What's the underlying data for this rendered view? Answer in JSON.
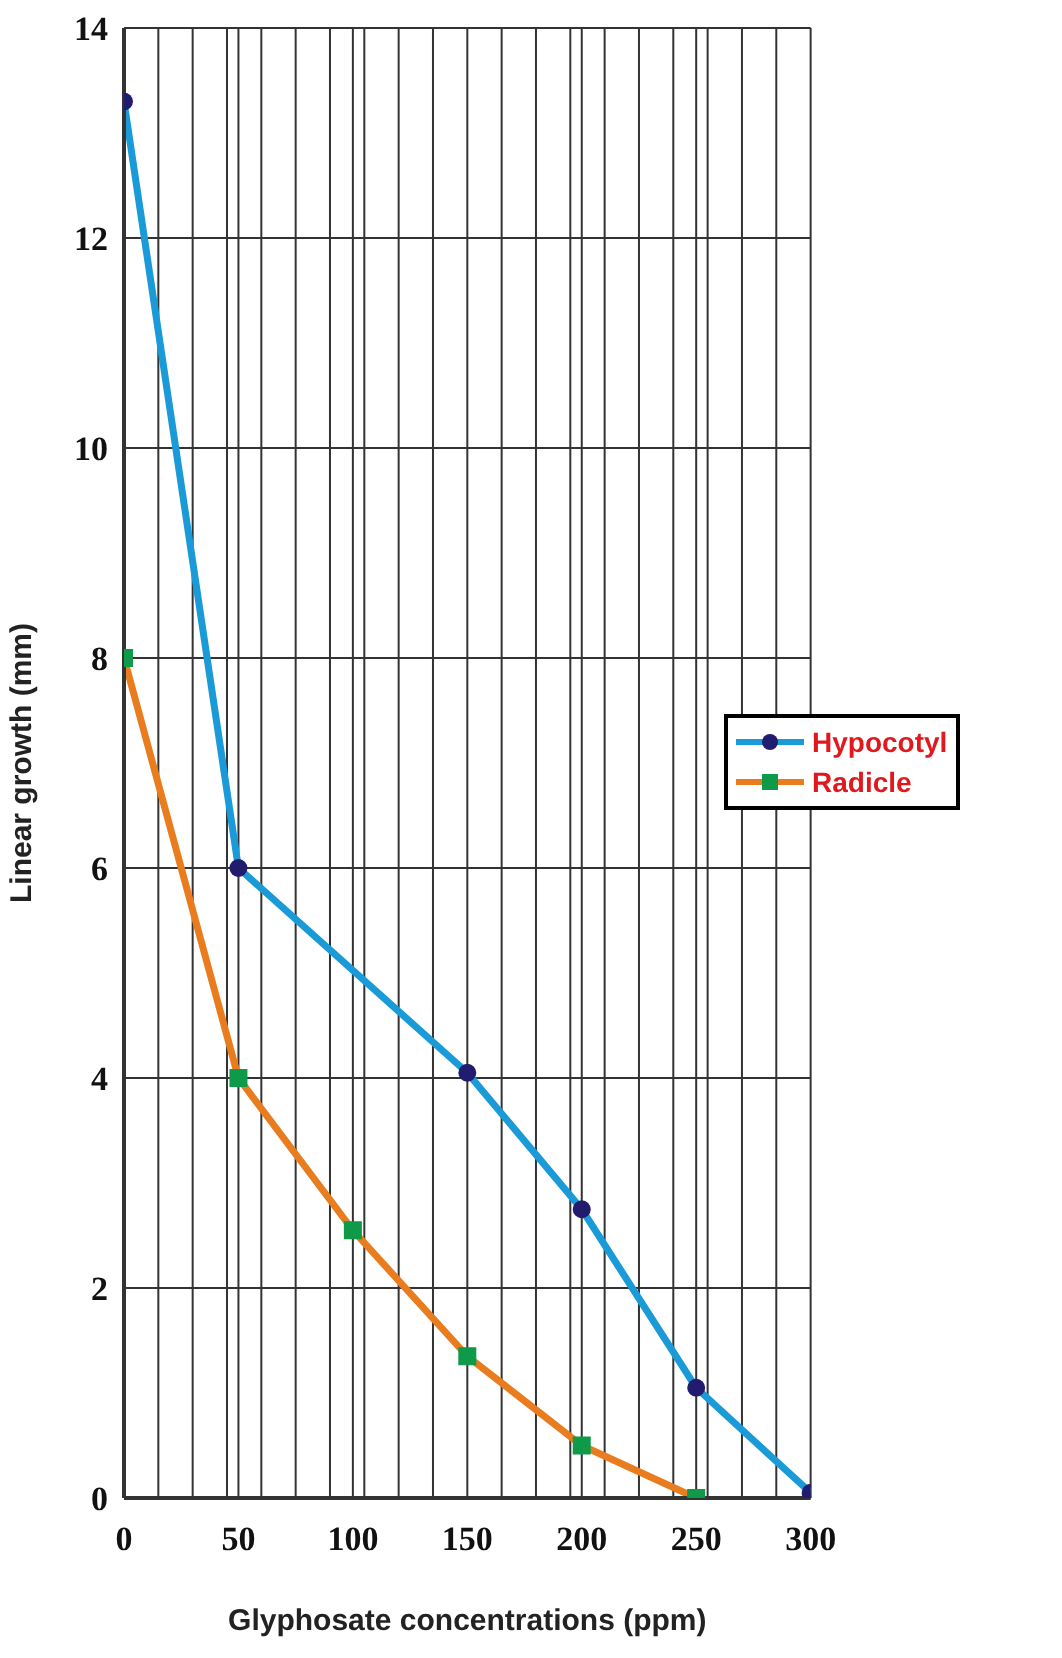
{
  "chart_data": {
    "type": "line",
    "xlabel": "Glyphosate concentrations (ppm)",
    "ylabel": "Linear growth (mm)",
    "x": [
      0,
      50,
      100,
      150,
      200,
      250,
      300
    ],
    "series": [
      {
        "name": "Hypocotyl",
        "color": "#1a9ad6",
        "marker": "circle",
        "colors": [
          "#221c6e",
          "#221c6e",
          null,
          "#221c6e",
          "#221c6e",
          "#221c6e",
          "#221c6e"
        ],
        "values": [
          13.3,
          6.0,
          null,
          4.05,
          2.75,
          1.05,
          0.05
        ]
      },
      {
        "name": "Radicle",
        "color": "#e87c1e",
        "marker": "square",
        "colors": [
          "#0e9a48",
          "#0e9a48",
          "#0e9a48",
          "#0e9a48",
          "#0e9a48",
          "#0e9a48",
          null
        ],
        "values": [
          8.0,
          4.0,
          2.55,
          1.35,
          0.5,
          0.0,
          null
        ]
      }
    ],
    "xlim": [
      0,
      300
    ],
    "xticks": [
      0,
      50,
      100,
      150,
      200,
      250,
      300,
      {
        "value": 15,
        "label": null
      },
      {
        "value": 30,
        "label": null
      },
      {
        "value": 45,
        "label": null
      },
      {
        "value": 60,
        "label": null
      },
      {
        "value": 75,
        "label": null
      },
      {
        "value": 90,
        "label": null
      },
      {
        "value": 105,
        "label": null
      },
      {
        "value": 120,
        "label": null
      },
      {
        "value": 135,
        "label": null
      },
      {
        "value": 165,
        "label": null
      },
      {
        "value": 180,
        "label": null
      },
      {
        "value": 195,
        "label": null
      },
      {
        "value": 210,
        "label": null
      },
      {
        "value": 225,
        "label": null
      },
      {
        "value": 240,
        "label": null
      },
      {
        "value": 255,
        "label": null
      },
      {
        "value": 270,
        "label": null
      },
      {
        "value": 285,
        "label": null
      }
    ],
    "ylim": [
      0,
      14
    ],
    "yticks": [
      0,
      2,
      4,
      6,
      8,
      10,
      12,
      14
    ],
    "grid": true,
    "legend": "right",
    "line_style": "solid"
  }
}
